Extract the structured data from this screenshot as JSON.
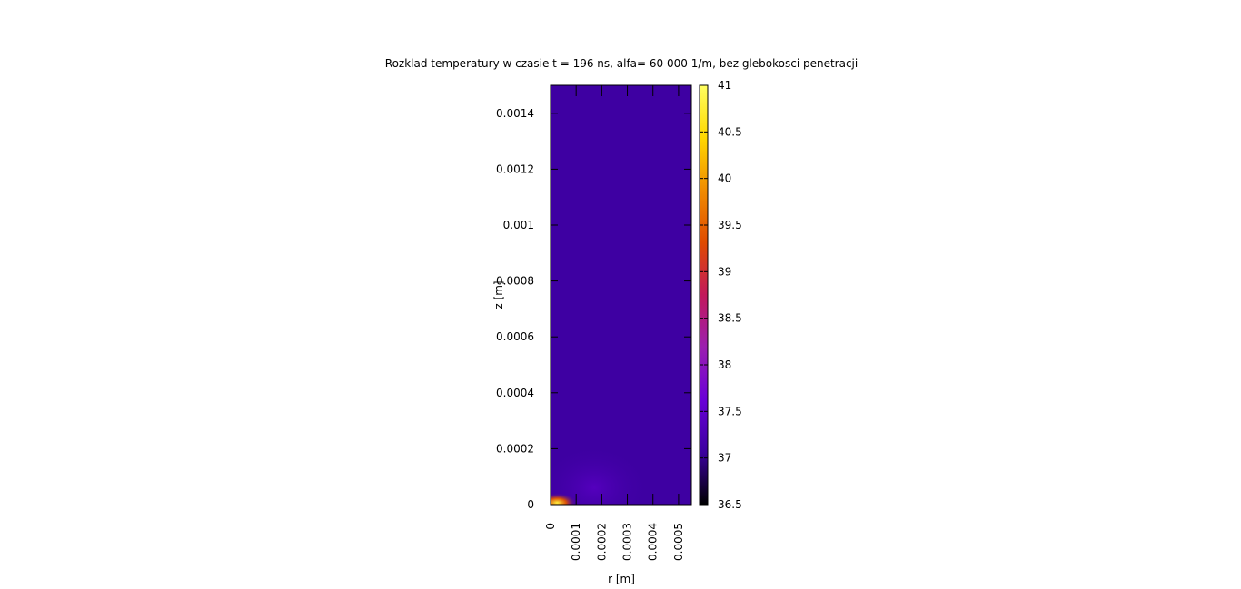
{
  "chart_data": {
    "type": "heatmap",
    "title": "Rozklad temperatury w czasie t = 196 ns, alfa= 60 000 1/m, bez glebokosci penetracji",
    "xlabel": "r [m]",
    "ylabel": "z [m]",
    "xlim": [
      0,
      0.00055
    ],
    "ylim": [
      0,
      0.0015
    ],
    "x_ticks": [
      "0",
      "0.0001",
      "0.0002",
      "0.0003",
      "0.0004",
      "0.0005"
    ],
    "x_tick_values": [
      0,
      0.0001,
      0.0002,
      0.0003,
      0.0004,
      0.0005
    ],
    "y_ticks": [
      "0",
      "0.0002",
      "0.0004",
      "0.0006",
      "0.0008",
      "0.001",
      "0.0012",
      "0.0014"
    ],
    "y_tick_values": [
      0,
      0.0002,
      0.0004,
      0.0006,
      0.0008,
      0.001,
      0.0012,
      0.0014
    ],
    "colorbar": {
      "min": 36.5,
      "max": 41,
      "ticks": [
        "41",
        "40.5",
        "40",
        "39.5",
        "39",
        "38.5",
        "38",
        "37.5",
        "37",
        "36.5"
      ],
      "tick_values": [
        41,
        40.5,
        40,
        39.5,
        39,
        38.5,
        38,
        37.5,
        37,
        36.5
      ],
      "palette": [
        "#000000",
        "#3b009e",
        "#6a00d8",
        "#9b1fb0",
        "#c2185b",
        "#e04b00",
        "#f08c00",
        "#ffd800",
        "#ffff60"
      ]
    },
    "background_temperature": 37.1,
    "hotspots": [
      {
        "r": 4e-05,
        "z": 2e-05,
        "temperature": 40.8
      },
      {
        "r": 0.00017,
        "z": 6e-05,
        "temperature": 37.4
      }
    ],
    "grid": false
  }
}
